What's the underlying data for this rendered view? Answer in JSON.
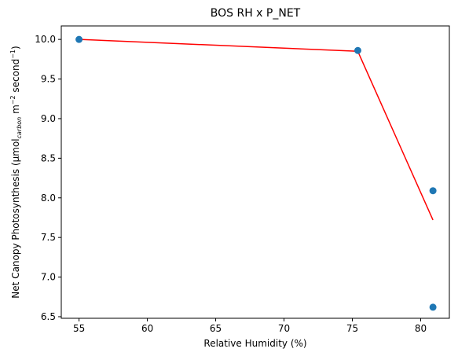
{
  "chart_data": {
    "type": "scatter",
    "title": "BOS RH x P_NET",
    "xlabel": "Relative Humidity (%)",
    "ylabel": {
      "prefix": "Net Canopy Photosynthesis (µmol",
      "sub": "carbon",
      "mid": " m",
      "sup1": "−2",
      "mid2": " second",
      "sup2": "−1",
      "suffix": ")"
    },
    "xlim": [
      53.7,
      82.1
    ],
    "ylim": [
      6.48,
      10.17
    ],
    "xticks": [
      55,
      60,
      65,
      70,
      75,
      80
    ],
    "yticks": [
      6.5,
      7.0,
      7.5,
      8.0,
      8.5,
      9.0,
      9.5,
      10.0
    ],
    "xtick_labels": [
      "55",
      "60",
      "65",
      "70",
      "75",
      "80"
    ],
    "ytick_labels": [
      "6.5",
      "7.0",
      "7.5",
      "8.0",
      "8.5",
      "9.0",
      "9.5",
      "10.0"
    ],
    "grid": false,
    "series": [
      {
        "kind": "scatter",
        "color": "#1f77b4",
        "points": [
          {
            "x": 55.0,
            "y": 10.0
          },
          {
            "x": 75.4,
            "y": 9.86
          },
          {
            "x": 80.9,
            "y": 8.09
          },
          {
            "x": 80.9,
            "y": 6.62
          }
        ]
      },
      {
        "kind": "line",
        "color": "#ff0000",
        "points": [
          {
            "x": 55.0,
            "y": 10.0
          },
          {
            "x": 75.4,
            "y": 9.85
          },
          {
            "x": 80.9,
            "y": 7.72
          }
        ]
      }
    ]
  }
}
